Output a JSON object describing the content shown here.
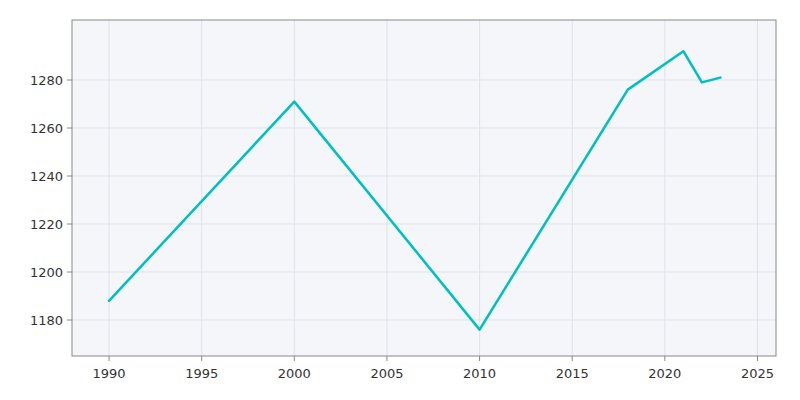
{
  "chart_data": {
    "type": "line",
    "x": [
      1990,
      2000,
      2010,
      2018,
      2021,
      2022,
      2023
    ],
    "values": [
      1188,
      1271,
      1176,
      1276,
      1292,
      1279,
      1281
    ],
    "color": "#00BFBF",
    "xlim": [
      1988,
      2026
    ],
    "ylim": [
      1165,
      1305
    ],
    "xticks": [
      1990,
      1995,
      2000,
      2005,
      2010,
      2015,
      2020,
      2025
    ],
    "yticks": [
      1180,
      1200,
      1220,
      1240,
      1260,
      1280
    ],
    "grid": true
  }
}
